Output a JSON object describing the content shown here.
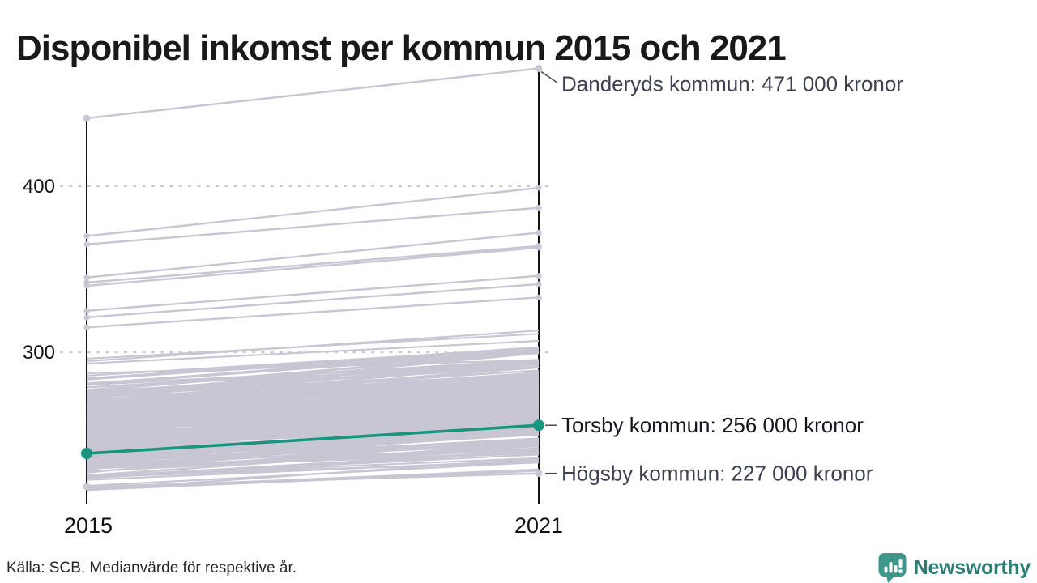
{
  "title": "Disponibel inkomst per kommun 2015 och 2021",
  "chart_data": {
    "type": "line",
    "variant": "slope",
    "x_labels": [
      "2015",
      "2021"
    ],
    "y_ticks": [
      300,
      400
    ],
    "y_axis_unit": "tusen kronor (implicit)",
    "series": [
      {
        "name": "Danderyds kommun",
        "values": [
          441,
          471
        ],
        "annotation": "Danderyds kommun: 471 000 kronor",
        "highlight": false
      },
      {
        "name": "Torsby kommun",
        "values": [
          239,
          256
        ],
        "annotation": "Torsby kommun: 256 000 kronor",
        "highlight": true
      },
      {
        "name": "Högsby kommun",
        "values": [
          219,
          227
        ],
        "annotation": "Högsby kommun: 227 000 kronor",
        "highlight": false
      }
    ],
    "background_lines": {
      "description": "unlabeled Swedish municipalities, 2015 vs 2021 median disposable income",
      "count": 270,
      "seed": 11,
      "v2015_mean": 254,
      "v2015_sd": 17,
      "v2015_min": 217,
      "v2015_max": 311,
      "delta_mean": 16,
      "delta_sd": 4.5,
      "delta_min": 8,
      "delta_max": 26,
      "v2021_min": 228.5,
      "outliers": [
        [
          370,
          399
        ],
        [
          365,
          387
        ],
        [
          345,
          372
        ],
        [
          342,
          364
        ],
        [
          340,
          363
        ],
        [
          325,
          346
        ],
        [
          321,
          341
        ],
        [
          315,
          333
        ]
      ]
    },
    "legend": "none",
    "grid": "dotted horizontal at y ticks",
    "colors": {
      "highlight": "#18957e",
      "background_line": "#c7c6d2",
      "axis": "#111111",
      "grid": "#c9c9cf",
      "tick_label": "#111111",
      "annotation": "#3d4150",
      "annotation_strong": "#16161e",
      "leader": "#4a4a55"
    }
  },
  "footer": {
    "source": "Källa: SCB. Medianvärde för respektive år."
  },
  "logo": {
    "name": "Newsworthy",
    "icon": "chart-speech-bubble-icon",
    "icon_color": "#3f968b",
    "text_color": "#2b7d72"
  }
}
